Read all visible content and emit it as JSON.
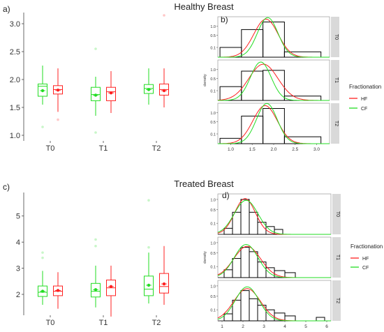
{
  "colors": {
    "HF": "#ff2020",
    "CF": "#22dd22",
    "strip": "#d9d9d9",
    "hist": "#000000"
  },
  "legend": {
    "title": "Fractionation",
    "items": [
      "HF",
      "CF"
    ]
  },
  "chart_data": [
    {
      "id": "box_healthy",
      "panel_label": "a)",
      "title": "Healthy Breast",
      "type": "box",
      "categories": [
        "T0",
        "T1",
        "T2"
      ],
      "ylim": [
        0.9,
        3.2
      ],
      "yticks": [
        "1.0",
        "1.5",
        "2.0",
        "2.5",
        "3.0"
      ],
      "xlabel": "",
      "ylabel": "",
      "series": [
        {
          "name": "CF",
          "boxes": [
            {
              "min": 1.55,
              "q1": 1.7,
              "median": 1.88,
              "q3": 1.92,
              "max": 2.25,
              "mean": 1.8,
              "outliers": [
                1.15
              ]
            },
            {
              "min": 1.35,
              "q1": 1.62,
              "median": 1.73,
              "q3": 1.86,
              "max": 2.05,
              "mean": 1.72,
              "outliers": [
                1.05,
                2.55
              ]
            },
            {
              "min": 1.55,
              "q1": 1.75,
              "median": 1.84,
              "q3": 1.91,
              "max": 2.2,
              "mean": 1.82,
              "outliers": []
            }
          ]
        },
        {
          "name": "HF",
          "boxes": [
            {
              "min": 1.42,
              "q1": 1.74,
              "median": 1.82,
              "q3": 1.89,
              "max": 2.2,
              "mean": 1.81,
              "outliers": [
                1.28
              ]
            },
            {
              "min": 1.4,
              "q1": 1.62,
              "median": 1.78,
              "q3": 1.86,
              "max": 2.15,
              "mean": 1.76,
              "outliers": []
            },
            {
              "min": 1.5,
              "q1": 1.72,
              "median": 1.82,
              "q3": 1.92,
              "max": 2.2,
              "mean": 1.8,
              "outliers": [
                3.15
              ]
            }
          ]
        }
      ]
    },
    {
      "id": "dens_healthy",
      "panel_label": "b)",
      "type": "histogram-density",
      "facets": [
        "T0",
        "T1",
        "T2"
      ],
      "xlim": [
        0.7,
        3.3
      ],
      "xticks": [
        "1.0",
        "1.5",
        "2.0",
        "2.5",
        "3.0"
      ],
      "yticks": [
        "0.1",
        "0.5",
        "1.0"
      ],
      "ymax": 1.6,
      "ylabel": "density",
      "hist": {
        "T0": [
          {
            "x0": 0.75,
            "x1": 1.25,
            "h": 0.1
          },
          {
            "x0": 1.25,
            "x1": 1.75,
            "h": 0.8
          },
          {
            "x0": 1.75,
            "x1": 2.25,
            "h": 1.3
          },
          {
            "x0": 2.25,
            "x1": 3.1,
            "h": 0.03
          }
        ],
        "T1": [
          {
            "x0": 0.75,
            "x1": 1.25,
            "h": 0.2
          },
          {
            "x0": 1.25,
            "x1": 1.75,
            "h": 0.9
          },
          {
            "x0": 1.75,
            "x1": 2.25,
            "h": 0.95
          },
          {
            "x0": 2.25,
            "x1": 3.1,
            "h": 0.02
          }
        ],
        "T2": [
          {
            "x0": 0.75,
            "x1": 1.25,
            "h": 0.03
          },
          {
            "x0": 1.25,
            "x1": 1.75,
            "h": 0.8
          },
          {
            "x0": 1.75,
            "x1": 2.25,
            "h": 1.3
          },
          {
            "x0": 2.25,
            "x1": 3.1,
            "h": 0.05
          }
        ]
      },
      "density": {
        "HF": {
          "T0": {
            "mu": 1.82,
            "sd": 0.2,
            "peak": 1.52
          },
          "T1": {
            "mu": 1.76,
            "sd": 0.24,
            "peak": 1.38
          },
          "T2": {
            "mu": 1.8,
            "sd": 0.2,
            "peak": 1.52
          }
        },
        "CF": {
          "T0": {
            "mu": 1.86,
            "sd": 0.17,
            "peak": 1.65
          },
          "T1": {
            "mu": 1.7,
            "sd": 0.17,
            "peak": 1.55
          },
          "T2": {
            "mu": 1.84,
            "sd": 0.17,
            "peak": 1.7
          }
        }
      }
    },
    {
      "id": "box_treated",
      "panel_label": "c)",
      "title": "Treated Breast",
      "type": "box",
      "categories": [
        "T0",
        "T1",
        "T2"
      ],
      "ylim": [
        1.2,
        5.9
      ],
      "yticks": [
        "2",
        "3",
        "4",
        "5"
      ],
      "xlabel": "",
      "ylabel": "",
      "series": [
        {
          "name": "CF",
          "boxes": [
            {
              "min": 1.6,
              "q1": 1.92,
              "median": 2.08,
              "q3": 2.32,
              "max": 2.9,
              "mean": 2.12,
              "outliers": [
                3.4,
                3.6
              ]
            },
            {
              "min": 1.5,
              "q1": 1.9,
              "median": 2.12,
              "q3": 2.42,
              "max": 3.1,
              "mean": 2.18,
              "outliers": [
                3.85,
                4.1
              ]
            },
            {
              "min": 1.65,
              "q1": 1.95,
              "median": 2.2,
              "q3": 2.7,
              "max": 3.6,
              "mean": 2.35,
              "outliers": [
                3.8,
                5.6
              ]
            }
          ]
        },
        {
          "name": "HF",
          "boxes": [
            {
              "min": 1.45,
              "q1": 1.95,
              "median": 2.12,
              "q3": 2.32,
              "max": 2.85,
              "mean": 2.15,
              "outliers": []
            },
            {
              "min": 1.15,
              "q1": 1.95,
              "median": 2.25,
              "q3": 2.55,
              "max": 3.1,
              "mean": 2.3,
              "outliers": []
            },
            {
              "min": 1.6,
              "q1": 2.05,
              "median": 2.3,
              "q3": 2.8,
              "max": 3.85,
              "mean": 2.4,
              "outliers": []
            }
          ]
        }
      ]
    },
    {
      "id": "dens_treated",
      "panel_label": "d)",
      "type": "histogram-density",
      "facets": [
        "T0",
        "T1",
        "T2"
      ],
      "xlim": [
        0.8,
        6.2
      ],
      "xticks": [
        "1",
        "2",
        "3",
        "4",
        "5",
        "6"
      ],
      "yticks": [
        "0.1",
        "0.5",
        "1.0"
      ],
      "ymax": 1.25,
      "ylabel": "density",
      "hist": {
        "T0": [
          {
            "x0": 1.1,
            "x1": 1.5,
            "h": 0.03
          },
          {
            "x0": 1.5,
            "x1": 1.9,
            "h": 0.4
          },
          {
            "x0": 1.9,
            "x1": 2.3,
            "h": 1.0
          },
          {
            "x0": 2.3,
            "x1": 2.7,
            "h": 0.4
          },
          {
            "x0": 2.7,
            "x1": 3.1,
            "h": 0.12
          },
          {
            "x0": 3.1,
            "x1": 3.5,
            "h": 0.05
          },
          {
            "x0": 3.5,
            "x1": 3.9,
            "h": 0.02
          }
        ],
        "T1": [
          {
            "x0": 1.1,
            "x1": 1.5,
            "h": 0.05
          },
          {
            "x0": 1.5,
            "x1": 1.9,
            "h": 0.3
          },
          {
            "x0": 1.9,
            "x1": 2.3,
            "h": 0.75
          },
          {
            "x0": 2.3,
            "x1": 2.7,
            "h": 0.55
          },
          {
            "x0": 2.7,
            "x1": 3.1,
            "h": 0.2
          },
          {
            "x0": 3.1,
            "x1": 3.5,
            "h": 0.08
          },
          {
            "x0": 3.5,
            "x1": 4.0,
            "h": 0.04
          },
          {
            "x0": 4.0,
            "x1": 4.5,
            "h": 0.02
          }
        ],
        "T2": [
          {
            "x0": 1.1,
            "x1": 1.5,
            "h": 0.04
          },
          {
            "x0": 1.5,
            "x1": 1.9,
            "h": 0.35
          },
          {
            "x0": 1.9,
            "x1": 2.3,
            "h": 0.75
          },
          {
            "x0": 2.3,
            "x1": 2.7,
            "h": 0.4
          },
          {
            "x0": 2.7,
            "x1": 3.1,
            "h": 0.2
          },
          {
            "x0": 3.1,
            "x1": 3.5,
            "h": 0.1
          },
          {
            "x0": 3.5,
            "x1": 4.0,
            "h": 0.05
          },
          {
            "x0": 4.0,
            "x1": 4.5,
            "h": 0.02
          },
          {
            "x0": 5.5,
            "x1": 5.9,
            "h": 0.01
          }
        ]
      },
      "density": {
        "HF": {
          "T0": {
            "mu": 2.1,
            "sd": 0.35,
            "peak": 1.05
          },
          "T1": {
            "mu": 2.2,
            "sd": 0.45,
            "peak": 0.8
          },
          "T2": {
            "mu": 2.2,
            "sd": 0.45,
            "peak": 0.85
          }
        },
        "CF": {
          "T0": {
            "mu": 2.15,
            "sd": 0.4,
            "peak": 0.95
          },
          "T1": {
            "mu": 2.15,
            "sd": 0.4,
            "peak": 0.9
          },
          "T2": {
            "mu": 2.2,
            "sd": 0.4,
            "peak": 0.95
          }
        }
      }
    }
  ]
}
